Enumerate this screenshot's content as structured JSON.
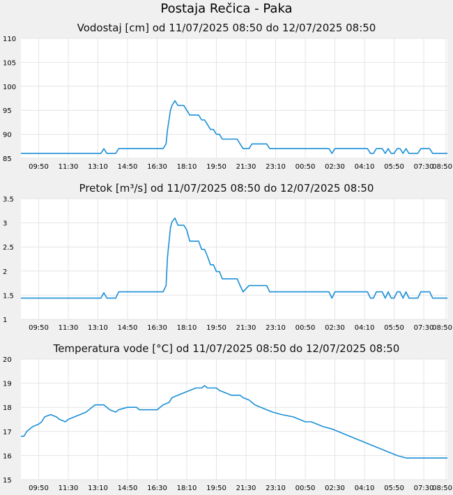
{
  "page": {
    "title": "Postaja Rečica - Paka"
  },
  "colors": {
    "line": "#1a8fd6",
    "grid": "#e4e4e4",
    "plot_bg": "#ffffff",
    "page_bg": "#f0f0f0"
  },
  "chart_data": [
    {
      "type": "line",
      "title": "Vodostaj [cm] od 11/07/2025 08:50 do 12/07/2025 08:50",
      "ylim": [
        85,
        110
      ],
      "yticks": [
        "85",
        "90",
        "95",
        "100",
        "105",
        "110"
      ],
      "xticks": [
        "09:50",
        "11:30",
        "13:10",
        "14:50",
        "16:30",
        "18:10",
        "19:50",
        "21:30",
        "23:10",
        "00:50",
        "02:30",
        "04:10",
        "05:50",
        "07:30",
        "08:50"
      ],
      "grid": true,
      "series": [
        {
          "points": [
            [
              "08:50",
              86
            ],
            [
              "13:20",
              86
            ],
            [
              "13:30",
              87
            ],
            [
              "13:40",
              86
            ],
            [
              "14:10",
              86
            ],
            [
              "14:20",
              87
            ],
            [
              "16:50",
              87
            ],
            [
              "17:00",
              88
            ],
            [
              "17:05",
              91
            ],
            [
              "17:10",
              93
            ],
            [
              "17:15",
              95
            ],
            [
              "17:20",
              96
            ],
            [
              "17:30",
              97
            ],
            [
              "17:40",
              96
            ],
            [
              "18:00",
              96
            ],
            [
              "18:10",
              95
            ],
            [
              "18:20",
              94
            ],
            [
              "18:50",
              94
            ],
            [
              "19:00",
              93
            ],
            [
              "19:10",
              93
            ],
            [
              "19:20",
              92
            ],
            [
              "19:30",
              91
            ],
            [
              "19:40",
              91
            ],
            [
              "19:50",
              90
            ],
            [
              "20:00",
              90
            ],
            [
              "20:10",
              89
            ],
            [
              "21:00",
              89
            ],
            [
              "21:10",
              88
            ],
            [
              "21:20",
              87
            ],
            [
              "21:40",
              87
            ],
            [
              "21:50",
              88
            ],
            [
              "22:40",
              88
            ],
            [
              "22:50",
              87
            ],
            [
              "02:10",
              87
            ],
            [
              "02:20",
              86
            ],
            [
              "02:30",
              87
            ],
            [
              "04:20",
              87
            ],
            [
              "04:30",
              86
            ],
            [
              "04:40",
              86
            ],
            [
              "04:50",
              87
            ],
            [
              "05:10",
              87
            ],
            [
              "05:20",
              86
            ],
            [
              "05:30",
              87
            ],
            [
              "05:40",
              86
            ],
            [
              "05:50",
              86
            ],
            [
              "06:00",
              87
            ],
            [
              "06:10",
              87
            ],
            [
              "06:20",
              86
            ],
            [
              "06:30",
              87
            ],
            [
              "06:40",
              86
            ],
            [
              "07:10",
              86
            ],
            [
              "07:20",
              87
            ],
            [
              "07:50",
              87
            ],
            [
              "08:00",
              86
            ],
            [
              "08:50",
              86
            ]
          ]
        }
      ]
    },
    {
      "type": "line",
      "title": "Pretok [m³/s] od 11/07/2025 08:50 do 12/07/2025 08:50",
      "ylim": [
        1,
        3.5
      ],
      "yticks": [
        "1",
        "1.5",
        "2",
        "2.5",
        "3",
        "3.5"
      ],
      "xticks": [
        "09:50",
        "11:30",
        "13:10",
        "14:50",
        "16:30",
        "18:10",
        "19:50",
        "21:30",
        "23:10",
        "00:50",
        "02:30",
        "04:10",
        "05:50",
        "07:30",
        "08:50"
      ],
      "grid": true,
      "series": [
        {
          "points": [
            [
              "08:50",
              1.44
            ],
            [
              "13:20",
              1.44
            ],
            [
              "13:30",
              1.55
            ],
            [
              "13:40",
              1.44
            ],
            [
              "14:10",
              1.44
            ],
            [
              "14:20",
              1.57
            ],
            [
              "16:50",
              1.57
            ],
            [
              "17:00",
              1.7
            ],
            [
              "17:05",
              2.3
            ],
            [
              "17:10",
              2.6
            ],
            [
              "17:15",
              2.9
            ],
            [
              "17:20",
              3.02
            ],
            [
              "17:30",
              3.1
            ],
            [
              "17:40",
              2.95
            ],
            [
              "18:00",
              2.95
            ],
            [
              "18:10",
              2.85
            ],
            [
              "18:20",
              2.62
            ],
            [
              "18:50",
              2.62
            ],
            [
              "19:00",
              2.45
            ],
            [
              "19:10",
              2.45
            ],
            [
              "19:20",
              2.3
            ],
            [
              "19:30",
              2.13
            ],
            [
              "19:40",
              2.13
            ],
            [
              "19:50",
              1.99
            ],
            [
              "20:00",
              1.99
            ],
            [
              "20:10",
              1.84
            ],
            [
              "21:00",
              1.84
            ],
            [
              "21:10",
              1.7
            ],
            [
              "21:20",
              1.57
            ],
            [
              "21:40",
              1.7
            ],
            [
              "22:40",
              1.7
            ],
            [
              "22:50",
              1.57
            ],
            [
              "02:10",
              1.57
            ],
            [
              "02:20",
              1.44
            ],
            [
              "02:30",
              1.57
            ],
            [
              "04:20",
              1.57
            ],
            [
              "04:30",
              1.44
            ],
            [
              "04:40",
              1.44
            ],
            [
              "04:50",
              1.57
            ],
            [
              "05:10",
              1.57
            ],
            [
              "05:20",
              1.44
            ],
            [
              "05:30",
              1.57
            ],
            [
              "05:40",
              1.44
            ],
            [
              "05:50",
              1.44
            ],
            [
              "06:00",
              1.57
            ],
            [
              "06:10",
              1.57
            ],
            [
              "06:20",
              1.44
            ],
            [
              "06:30",
              1.57
            ],
            [
              "06:40",
              1.44
            ],
            [
              "07:10",
              1.44
            ],
            [
              "07:20",
              1.57
            ],
            [
              "07:50",
              1.57
            ],
            [
              "08:00",
              1.44
            ],
            [
              "08:50",
              1.44
            ]
          ]
        }
      ]
    },
    {
      "type": "line",
      "title": "Temperatura vode [°C] od 11/07/2025 08:50 do 12/07/2025 08:50",
      "ylim": [
        15,
        20
      ],
      "yticks": [
        "15",
        "16",
        "17",
        "18",
        "19",
        "20"
      ],
      "xticks": [
        "09:50",
        "11:30",
        "13:10",
        "14:50",
        "16:30",
        "18:10",
        "19:50",
        "21:30",
        "23:10",
        "00:50",
        "02:30",
        "04:10",
        "05:50",
        "07:30",
        "08:50"
      ],
      "grid": true,
      "series": [
        {
          "points": [
            [
              "08:50",
              16.8
            ],
            [
              "09:00",
              16.8
            ],
            [
              "09:10",
              17.0
            ],
            [
              "09:20",
              17.1
            ],
            [
              "09:30",
              17.2
            ],
            [
              "09:50",
              17.3
            ],
            [
              "10:00",
              17.4
            ],
            [
              "10:10",
              17.6
            ],
            [
              "10:30",
              17.7
            ],
            [
              "10:50",
              17.6
            ],
            [
              "11:00",
              17.5
            ],
            [
              "11:20",
              17.4
            ],
            [
              "11:30",
              17.5
            ],
            [
              "11:50",
              17.6
            ],
            [
              "12:10",
              17.7
            ],
            [
              "12:30",
              17.8
            ],
            [
              "12:50",
              18.0
            ],
            [
              "13:00",
              18.1
            ],
            [
              "13:30",
              18.1
            ],
            [
              "13:40",
              18.0
            ],
            [
              "13:50",
              17.9
            ],
            [
              "14:10",
              17.8
            ],
            [
              "14:20",
              17.9
            ],
            [
              "14:50",
              18.0
            ],
            [
              "15:20",
              18.0
            ],
            [
              "15:30",
              17.9
            ],
            [
              "16:30",
              17.9
            ],
            [
              "16:40",
              18.0
            ],
            [
              "16:50",
              18.1
            ],
            [
              "17:10",
              18.2
            ],
            [
              "17:20",
              18.4
            ],
            [
              "17:40",
              18.5
            ],
            [
              "18:00",
              18.6
            ],
            [
              "18:20",
              18.7
            ],
            [
              "18:40",
              18.8
            ],
            [
              "19:00",
              18.8
            ],
            [
              "19:10",
              18.9
            ],
            [
              "19:20",
              18.8
            ],
            [
              "19:50",
              18.8
            ],
            [
              "20:00",
              18.7
            ],
            [
              "20:20",
              18.6
            ],
            [
              "20:40",
              18.5
            ],
            [
              "21:10",
              18.5
            ],
            [
              "21:20",
              18.4
            ],
            [
              "21:40",
              18.3
            ],
            [
              "22:00",
              18.1
            ],
            [
              "22:20",
              18.0
            ],
            [
              "22:40",
              17.9
            ],
            [
              "23:00",
              17.8
            ],
            [
              "23:30",
              17.7
            ],
            [
              "24:10",
              17.6
            ],
            [
              "24:30",
              17.5
            ],
            [
              "24:50",
              17.4
            ],
            [
              "25:10",
              17.4
            ],
            [
              "25:30",
              17.3
            ],
            [
              "25:50",
              17.2
            ],
            [
              "26:20",
              17.1
            ],
            [
              "26:40",
              17.0
            ],
            [
              "27:00",
              16.9
            ],
            [
              "27:20",
              16.8
            ],
            [
              "27:40",
              16.7
            ],
            [
              "28:00",
              16.6
            ],
            [
              "28:20",
              16.5
            ],
            [
              "28:40",
              16.4
            ],
            [
              "29:00",
              16.3
            ],
            [
              "29:20",
              16.2
            ],
            [
              "29:40",
              16.1
            ],
            [
              "30:00",
              16.0
            ],
            [
              "30:30",
              15.9
            ],
            [
              "32:50",
              15.9
            ]
          ]
        }
      ]
    }
  ]
}
